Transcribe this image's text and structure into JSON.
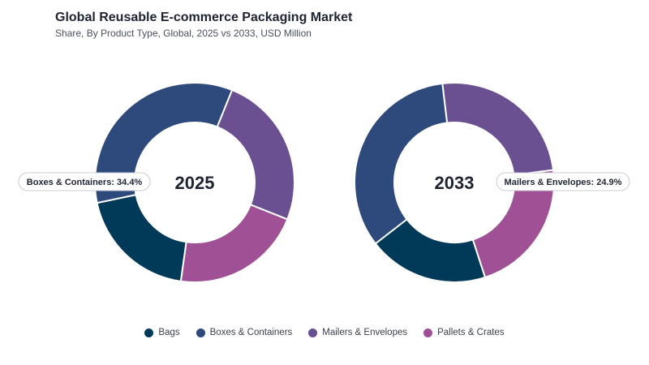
{
  "header": {
    "title": "Global Reusable E-commerce Packaging Market",
    "subtitle": "Share, By Product Type, Global, 2025 vs 2033, USD Million"
  },
  "colors": {
    "Bags": "#013a58",
    "Boxes & Containers": "#2e4a7c",
    "Mailers & Envelopes": "#6a4f91",
    "Pallets & Crates": "#a05094"
  },
  "chart_data": [
    {
      "type": "donut",
      "center_label": "2025",
      "categories": [
        "Bags",
        "Boxes & Containers",
        "Mailers & Envelopes",
        "Pallets & Crates"
      ],
      "values": [
        19.5,
        34.4,
        24.9,
        21.2
      ],
      "annotation": "Boxes & Containers: 34.4%",
      "legend_position": "bottom"
    },
    {
      "type": "donut",
      "center_label": "2033",
      "categories": [
        "Bags",
        "Boxes & Containers",
        "Mailers & Envelopes",
        "Pallets & Crates"
      ],
      "values": [
        19.5,
        33.6,
        24.9,
        22.0
      ],
      "annotation": "Mailers & Envelopes: 24.9%",
      "legend_position": "bottom"
    }
  ],
  "legend": [
    {
      "label": "Bags",
      "color": "#013a58"
    },
    {
      "label": "Boxes & Containers",
      "color": "#2e4a7c"
    },
    {
      "label": "Mailers & Envelopes",
      "color": "#6a4f91"
    },
    {
      "label": "Pallets & Crates",
      "color": "#a05094"
    }
  ]
}
